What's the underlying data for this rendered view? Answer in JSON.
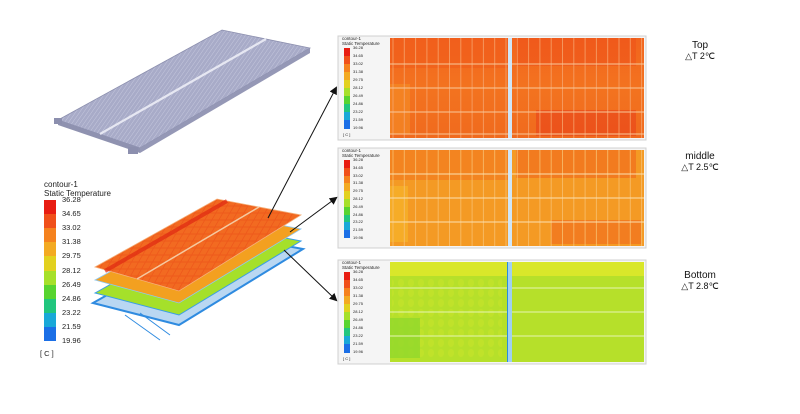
{
  "legend": {
    "title_line1": "contour-1",
    "title_line2": "Static Temperature",
    "unit": "[ C ]",
    "ticks": [
      "36.28",
      "34.65",
      "33.02",
      "31.38",
      "29.75",
      "28.12",
      "26.49",
      "24.86",
      "23.22",
      "21.59",
      "19.96"
    ],
    "colors": [
      "#e81d12",
      "#f0501a",
      "#f5821e",
      "#f3aa22",
      "#e2d11f",
      "#a6e02a",
      "#57d430",
      "#21c67e",
      "#19a8d8",
      "#1b6fe6",
      "#1d3ce8"
    ]
  },
  "panels": [
    {
      "label": "Top",
      "delta": "△T 2℃"
    },
    {
      "label": "middle",
      "delta": "△T 2.5℃"
    },
    {
      "label": "Bottom",
      "delta": "△T 2.8℃"
    }
  ]
}
